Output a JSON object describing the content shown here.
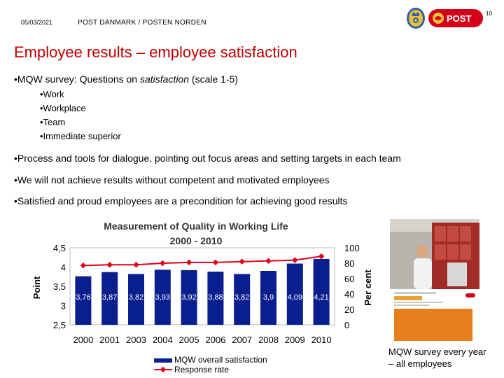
{
  "header": {
    "date": "05/03/2021",
    "org": "POST DANMARK / POSTEN NORDEN",
    "page_number": "10",
    "logo_text": "POST"
  },
  "title": "Employee results – employee satisfaction",
  "bullets": {
    "b1_prefix": "•MQW survey: Questions on ",
    "b1_em": "satisfaction",
    "b1_suffix": " (scale 1-5)",
    "sub": [
      "•Work",
      "•Workplace",
      "•Team",
      "•Immediate superior"
    ],
    "b2": "•Process and tools for dialogue, pointing out focus areas and setting targets in each team",
    "b3": "•We will not achieve results without competent and motivated employees",
    "b4": "•Satisfied and proud employees are a precondition for achieving good results"
  },
  "chart_data": {
    "type": "bar",
    "title_line1": "Measurement of Quality in Working Life",
    "title_line2": "2000 - 2010",
    "categories": [
      "2000",
      "2001",
      "2003",
      "2004",
      "2005",
      "2006",
      "2007",
      "2008",
      "2009",
      "2010"
    ],
    "series": [
      {
        "name": "MQW overall satisfaction",
        "type": "bar",
        "axis": "left",
        "values": [
          3.76,
          3.87,
          3.82,
          3.93,
          3.92,
          3.88,
          3.82,
          3.9,
          4.09,
          4.21
        ],
        "labels": [
          "3,76",
          "3,87",
          "3,82",
          "3,93",
          "3,92",
          "3,88",
          "3,82",
          "3,9",
          "4,09",
          "4,21"
        ]
      },
      {
        "name": "Response rate",
        "type": "line",
        "axis": "right",
        "values": [
          77,
          78,
          78,
          80,
          81,
          81,
          82,
          83,
          84,
          89
        ]
      }
    ],
    "ylabel_left": "Point",
    "ylabel_right": "Per cent",
    "ylim_left": [
      2.5,
      4.5
    ],
    "yticks_left": [
      "4,5",
      "4",
      "3,5",
      "3",
      "2,5"
    ],
    "ylim_right": [
      0,
      100
    ],
    "yticks_right": [
      "100",
      "80",
      "60",
      "40",
      "20",
      "0"
    ],
    "legend_position": "bottom",
    "colors": {
      "bar": "#0a1f8f",
      "line": "#e0001b"
    }
  },
  "photo": {
    "caption_line1": "MQW survey every year",
    "caption_line2": "– all employees"
  },
  "colors": {
    "title": "#c00000",
    "post_red": "#d4001a",
    "seal_blue": "#2f5fa8"
  }
}
